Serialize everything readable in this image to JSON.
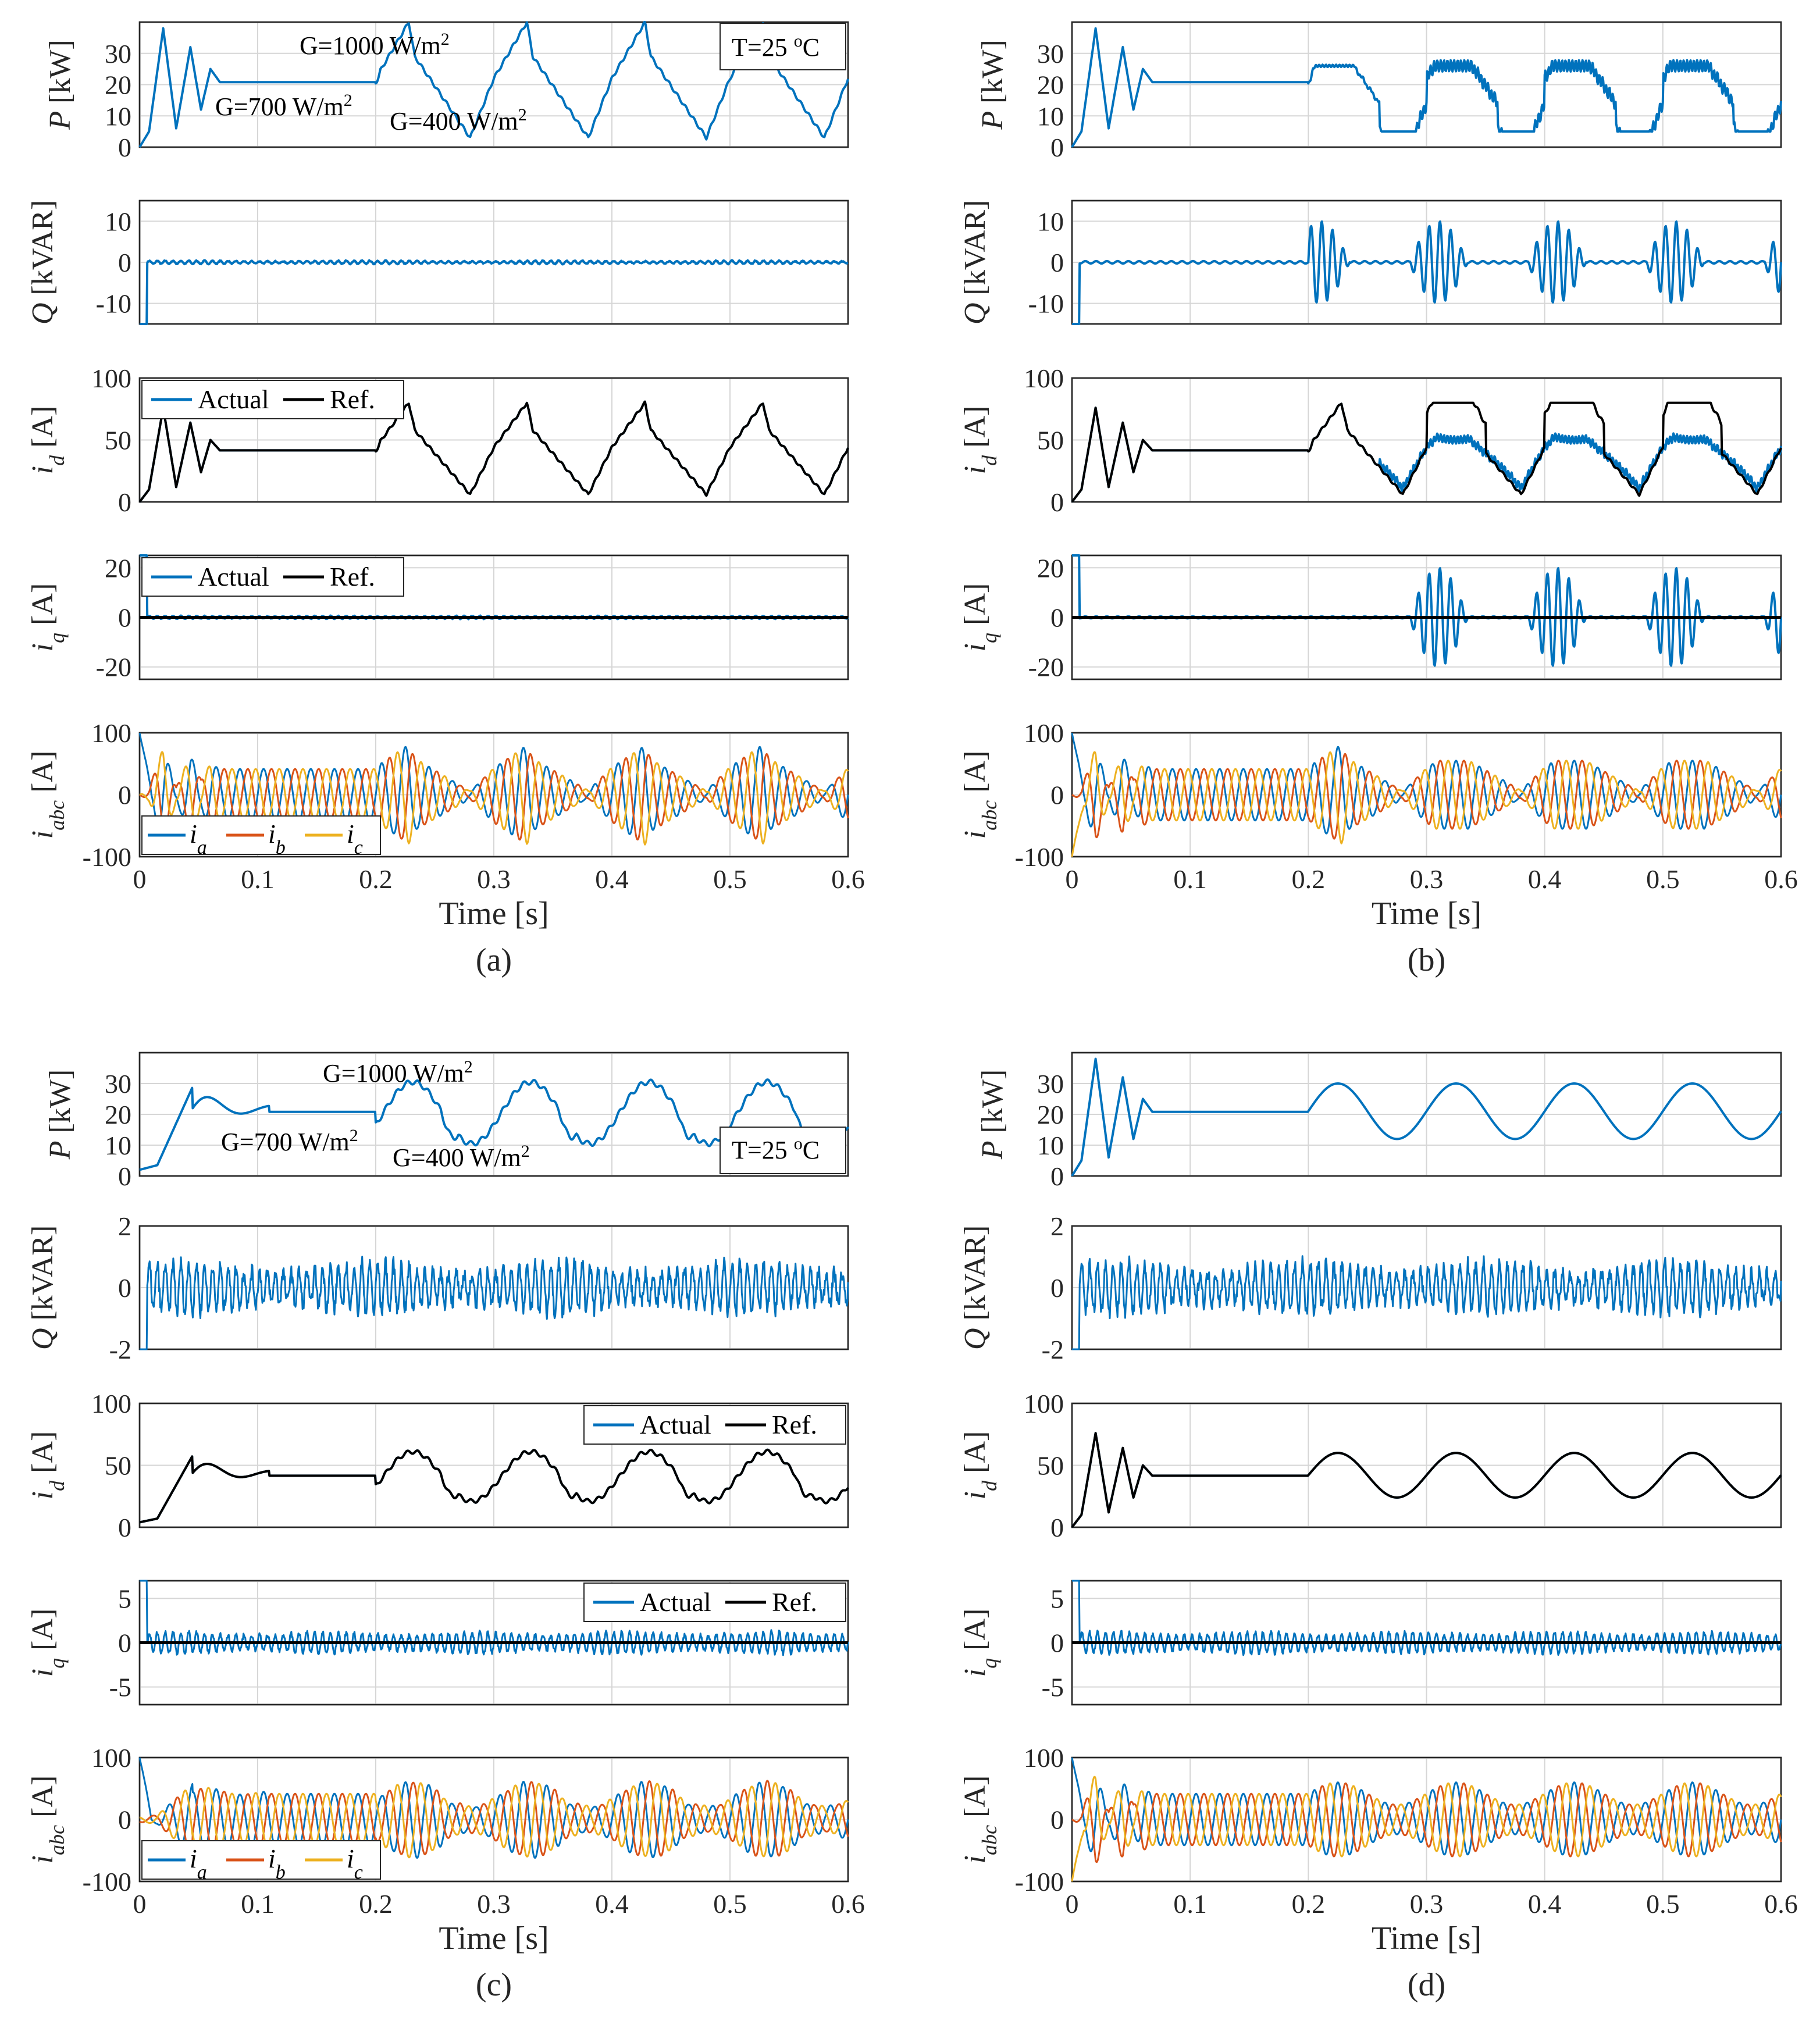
{
  "chart_data": {
    "type": "line",
    "x_label": "Time [s]",
    "x_ticks": [
      "0",
      "0.1",
      "0.2",
      "0.3",
      "0.4",
      "0.5",
      "0.6"
    ],
    "xlim": [
      0,
      0.6
    ],
    "colors": {
      "actual": "#0072BD",
      "ref": "#000000",
      "ia": "#0072BD",
      "ib": "#D95319",
      "ic": "#EDB120"
    },
    "legend_labels": {
      "actual": "Actual",
      "ref": "Ref.",
      "ia": "i",
      "ia_sub": "a",
      "ib": "i",
      "ib_sub": "b",
      "ic": "i",
      "ic_sub": "c"
    },
    "axis_labels": {
      "P": {
        "sym": "P",
        "unit": " [kW]"
      },
      "Q": {
        "sym": "Q",
        "unit": " [kVAR]"
      },
      "id": {
        "sym": "i",
        "sub": "d",
        "unit": " [A]"
      },
      "iq": {
        "sym": "i",
        "sub": "q",
        "unit": " [A]"
      },
      "iabc": {
        "sym": "i",
        "sub": "abc",
        "unit": " [A]"
      }
    },
    "panels": [
      {
        "caption": "(a)",
        "irradiance": "ramps",
        "annotations": {
          "g1000": "G=1000 W/m",
          "g700": "G=700 W/m",
          "g400": "G=400 W/m",
          "sup": "2",
          "temp": "T=25 ",
          "temp_sup": "o",
          "temp_unit": "C"
        },
        "P": {
          "ylim": [
            0,
            40
          ],
          "yticks": [
            "0",
            "10",
            "20",
            "30"
          ]
        },
        "Q": {
          "ylim": [
            -15,
            15
          ],
          "yticks": [
            "-10",
            "0",
            "10"
          ],
          "ripple": 0.4
        },
        "id": {
          "ylim": [
            0,
            100
          ],
          "yticks": [
            "0",
            "50",
            "100"
          ],
          "legend": "top-left",
          "track": "perfect"
        },
        "iq": {
          "ylim": [
            -25,
            25
          ],
          "yticks": [
            "-20",
            "0",
            "20"
          ],
          "legend": "top-left",
          "ripple": 0.6
        },
        "iabc": {
          "ylim": [
            -100,
            100
          ],
          "yticks": [
            "-100",
            "0",
            "100"
          ],
          "legend": "bottom-left"
        }
      },
      {
        "caption": "(b)",
        "irradiance": "ramps",
        "saturated": true,
        "P": {
          "ylim": [
            0,
            40
          ],
          "yticks": [
            "0",
            "10",
            "20",
            "30"
          ]
        },
        "Q": {
          "ylim": [
            -15,
            15
          ],
          "yticks": [
            "-10",
            "0",
            "10"
          ],
          "bursts": 10
        },
        "id": {
          "ylim": [
            0,
            100
          ],
          "yticks": [
            "0",
            "50",
            "100"
          ],
          "ref_saturation": 80
        },
        "iq": {
          "ylim": [
            -25,
            25
          ],
          "yticks": [
            "-20",
            "0",
            "20"
          ],
          "bursts": 20
        },
        "iabc": {
          "ylim": [
            -100,
            100
          ],
          "yticks": [
            "-100",
            "0",
            "100"
          ]
        }
      },
      {
        "caption": "(c)",
        "irradiance": "ramps-smooth",
        "annotations": {
          "g1000": "G=1000 W/m",
          "g700": "G=700 W/m",
          "g400": "G=400 W/m",
          "sup": "2",
          "temp": "T=25 ",
          "temp_sup": "o",
          "temp_unit": "C"
        },
        "P": {
          "ylim": [
            0,
            40
          ],
          "yticks": [
            "0",
            "10",
            "20",
            "30"
          ]
        },
        "Q": {
          "ylim": [
            -2,
            2
          ],
          "yticks": [
            "-2",
            "0",
            "2"
          ],
          "ripple": 0.8
        },
        "id": {
          "ylim": [
            0,
            100
          ],
          "yticks": [
            "0",
            "50",
            "100"
          ],
          "legend": "top-right"
        },
        "iq": {
          "ylim": [
            -7,
            7
          ],
          "yticks": [
            "-5",
            "0",
            "5"
          ],
          "legend": "top-right",
          "ripple": 1.2
        },
        "iabc": {
          "ylim": [
            -100,
            100
          ],
          "yticks": [
            "-100",
            "0",
            "100"
          ],
          "legend": "bottom-left"
        }
      },
      {
        "caption": "(d)",
        "irradiance": "sine",
        "P": {
          "ylim": [
            0,
            40
          ],
          "yticks": [
            "0",
            "10",
            "20",
            "30"
          ]
        },
        "Q": {
          "ylim": [
            -2,
            2
          ],
          "yticks": [
            "-2",
            "0",
            "2"
          ],
          "ripple": 0.8
        },
        "id": {
          "ylim": [
            0,
            100
          ],
          "yticks": [
            "0",
            "50",
            "100"
          ]
        },
        "iq": {
          "ylim": [
            -7,
            7
          ],
          "yticks": [
            "-5",
            "0",
            "5"
          ],
          "ripple": 1.2
        },
        "iabc": {
          "ylim": [
            -100,
            100
          ],
          "yticks": [
            "-100",
            "0",
            "100"
          ]
        }
      }
    ]
  }
}
